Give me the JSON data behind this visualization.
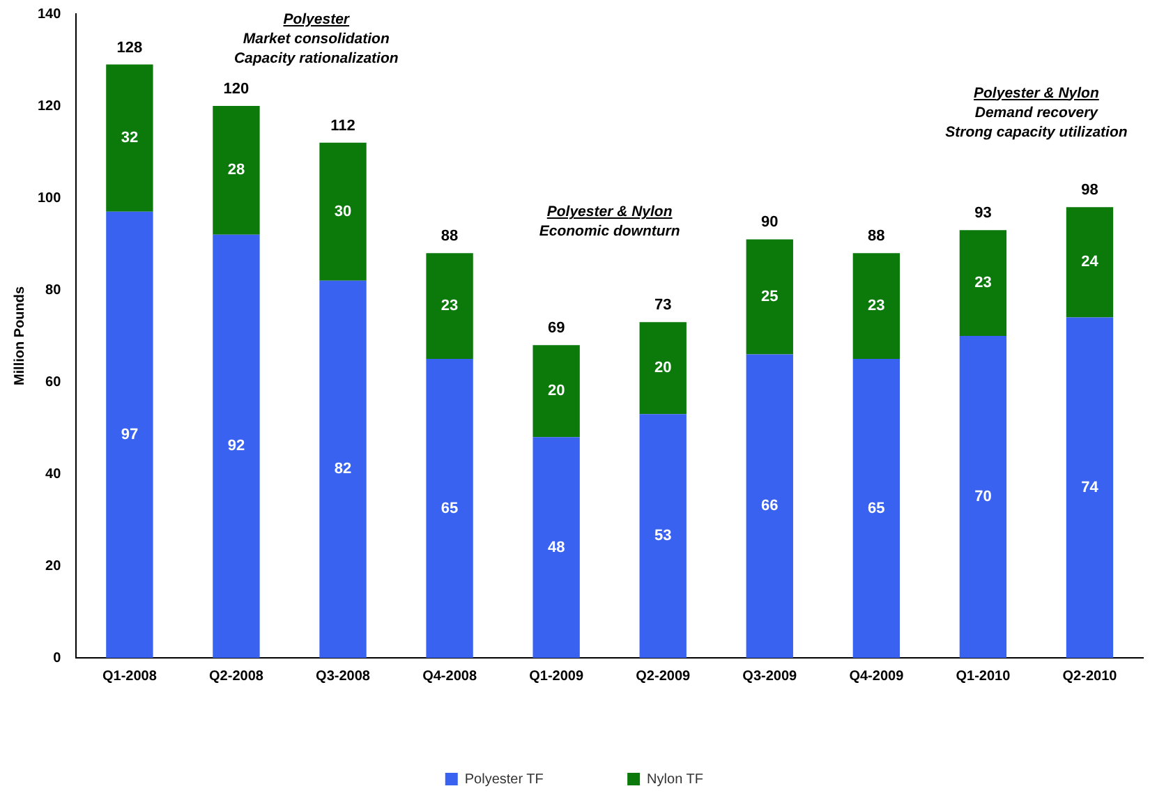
{
  "chart_data": {
    "type": "bar",
    "stacked": true,
    "ylabel": "Million Pounds",
    "categories": [
      "Q1-2008",
      "Q2-2008",
      "Q3-2008",
      "Q4-2008",
      "Q1-2009",
      "Q2-2009",
      "Q3-2009",
      "Q4-2009",
      "Q1-2010",
      "Q2-2010"
    ],
    "series": [
      {
        "name": "Polyester TF",
        "color": "#3a62f0",
        "values": [
          97,
          92,
          82,
          65,
          48,
          53,
          66,
          65,
          70,
          74
        ]
      },
      {
        "name": "Nylon TF",
        "color": "#0b7a0b",
        "values": [
          32,
          28,
          30,
          23,
          20,
          20,
          25,
          23,
          23,
          24
        ]
      }
    ],
    "data_labels": true,
    "totals": [
      "128",
      "120",
      "112",
      "88",
      "69",
      "73",
      "90",
      "88",
      "93",
      "98"
    ],
    "ylim": [
      0,
      140
    ],
    "yticks": [
      0,
      20,
      40,
      60,
      80,
      100,
      120,
      140
    ],
    "grid": false,
    "legend": "bottom",
    "annotations": [
      "Polyester\nMarket consolidation\nCapacity rationalization",
      "Polyester & Nylon\nEconomic downturn",
      "Polyester & Nylon\nDemand recovery\nStrong capacity utilization"
    ]
  }
}
